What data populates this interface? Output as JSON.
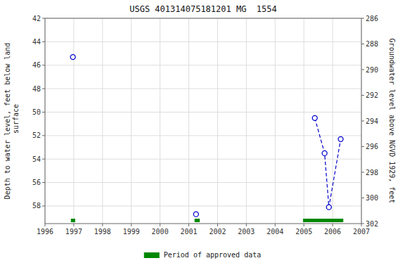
{
  "chart_data": {
    "type": "scatter",
    "title": "USGS 401314075181201 MG  1554",
    "y_label": "Depth to water level, feet below land\n surface",
    "y2_label": "Groundwater level above NGVD 1929, feet",
    "xlim": [
      1996.0,
      2007.0
    ],
    "xticks": [
      1996,
      1997,
      1998,
      1999,
      2000,
      2001,
      2002,
      2003,
      2004,
      2005,
      2006,
      2007
    ],
    "ylim": [
      59.5,
      42
    ],
    "yticks": [
      42,
      44,
      46,
      48,
      50,
      52,
      54,
      56,
      58
    ],
    "y2lim": [
      302,
      286
    ],
    "y2ticks": [
      302,
      300,
      298,
      296,
      294,
      292,
      290,
      288,
      286
    ],
    "grid": true,
    "legend": "bottom",
    "series": [
      {
        "type": "scatter",
        "marker": "circle",
        "color": "#0000cc",
        "x": [
          1996.97,
          2001.25,
          2005.38,
          2005.72,
          2005.87,
          2006.28
        ],
        "values": [
          45.3,
          58.7,
          50.5,
          53.5,
          58.1,
          52.3
        ]
      },
      {
        "type": "line",
        "line_style": "dashed",
        "color": "#0000cc",
        "x": [
          2005.38,
          2005.72,
          2005.87,
          2006.28
        ],
        "values": [
          50.5,
          53.5,
          58.1,
          52.3
        ]
      },
      {
        "type": "span",
        "name": "Period of approved data",
        "color": "#008800",
        "starts": [
          1996.9,
          2001.2,
          2004.97
        ],
        "ends": [
          1997.05,
          2001.38,
          2006.37
        ]
      }
    ]
  }
}
